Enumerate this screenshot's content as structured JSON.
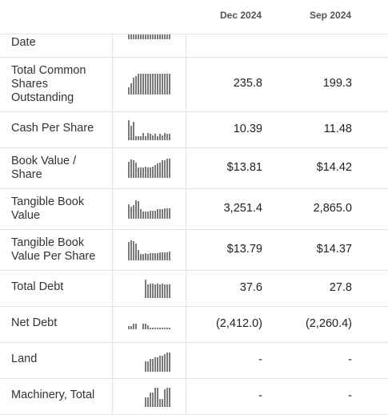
{
  "columns": [
    "Dec 2024",
    "Sep 2024"
  ],
  "rows": [
    {
      "label": "Date",
      "v1": "",
      "v2": "",
      "spark": [
        1,
        1,
        1,
        1,
        1,
        1,
        1,
        1,
        1,
        1,
        1,
        1,
        1,
        1,
        1,
        1,
        1,
        1
      ]
    },
    {
      "label": "Total Common Shares Outstanding",
      "v1": "235.8",
      "v2": "199.3",
      "spark": [
        0.35,
        0.55,
        0.8,
        0.9,
        1,
        1,
        1,
        1,
        1,
        1,
        1,
        1,
        1,
        1,
        1,
        1,
        1,
        1
      ]
    },
    {
      "label": "Cash Per Share",
      "v1": "10.39",
      "v2": "11.48",
      "spark": [
        1,
        0.7,
        0.9,
        0.2,
        0.2,
        0.2,
        0.35,
        0.2,
        0.35,
        0.3,
        0.25,
        0.3,
        0.2,
        0.3,
        0.25,
        0.35,
        0.3,
        0.3
      ]
    },
    {
      "label": "Book Value / Share",
      "v1": "$13.81",
      "v2": "$14.42",
      "spark": [
        0.85,
        0.95,
        0.9,
        0.8,
        0.55,
        0.55,
        0.55,
        0.6,
        0.55,
        0.55,
        0.6,
        0.65,
        0.75,
        0.8,
        0.9,
        0.9,
        1,
        1
      ]
    },
    {
      "label": "Tangible Book Value",
      "v1": "3,251.4",
      "v2": "2,865.0",
      "spark": [
        0.8,
        0.65,
        0.75,
        1,
        0.95,
        0.5,
        0.4,
        0.4,
        0.4,
        0.45,
        0.45,
        0.45,
        0.5,
        0.5,
        0.5,
        0.55,
        0.55,
        0.55
      ]
    },
    {
      "label": "Tangible Book Value Per Share",
      "v1": "$13.79",
      "v2": "$14.37",
      "spark": [
        0.9,
        1,
        0.95,
        0.85,
        0.5,
        0.3,
        0.3,
        0.35,
        0.3,
        0.35,
        0.35,
        0.35,
        0.35,
        0.4,
        0.4,
        0.4,
        0.4,
        0.45
      ]
    },
    {
      "label": "Total Debt",
      "v1": "37.6",
      "v2": "27.8",
      "spark": [
        0,
        0,
        0,
        0,
        0,
        0,
        0,
        1,
        0.75,
        0.8,
        0.8,
        0.75,
        0.8,
        0.75,
        0.8,
        0.75,
        0.75,
        0.75
      ]
    },
    {
      "label": "Net Debt",
      "v1": "(2,412.0)",
      "v2": "(2,260.4)",
      "spark": [
        0.35,
        0.3,
        0.55,
        0.6,
        0,
        0,
        0.6,
        0.6,
        0.45,
        0.15,
        0.15,
        0.15,
        0.15,
        0.15,
        0.15,
        0.15,
        0.15,
        0.15
      ]
    },
    {
      "label": "Land",
      "v1": "-",
      "v2": "-",
      "spark": [
        0,
        0,
        0,
        0,
        0,
        0,
        0,
        0.55,
        0.55,
        0.65,
        0.65,
        0.75,
        0.75,
        0.85,
        0.85,
        0.9,
        1,
        1
      ]
    },
    {
      "label": "Machinery, Total",
      "v1": "-",
      "v2": "-",
      "spark": [
        0,
        0,
        0,
        0,
        0,
        0,
        0,
        0.5,
        0.5,
        0.75,
        0.75,
        1,
        1,
        0.4,
        0.4,
        0.9,
        1,
        1
      ]
    }
  ]
}
